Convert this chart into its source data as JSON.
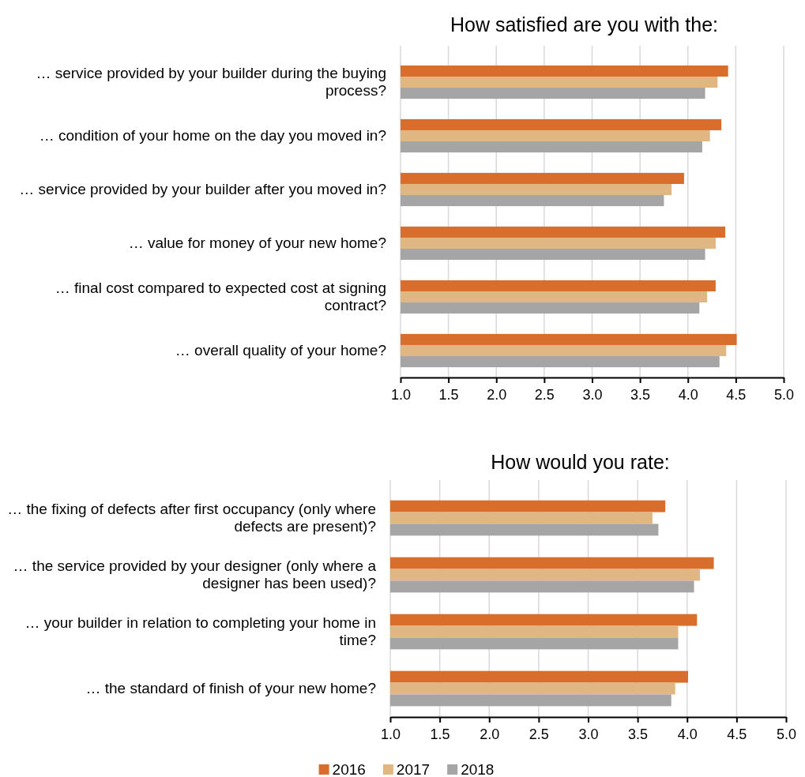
{
  "chart_data": [
    {
      "type": "bar",
      "orientation": "horizontal",
      "title": "How satisfied are you with the:",
      "categories": [
        "… service provided by your builder during the buying process?",
        "… condition of your home on the day you moved in?",
        "… service provided by your builder after you moved in?",
        "… value for money of your new home?",
        "… final cost compared to expected cost at signing contract?",
        "… overall quality of your home?"
      ],
      "series": [
        {
          "color": "#d96d2c",
          "values": [
            4.42,
            4.35,
            3.96,
            4.39,
            4.29,
            4.51
          ]
        },
        {
          "color": "#e0b683",
          "values": [
            4.31,
            4.23,
            3.83,
            4.29,
            4.2,
            4.4
          ]
        },
        {
          "color": "#a5a5a5",
          "values": [
            4.18,
            4.15,
            3.75,
            4.18,
            4.12,
            4.33
          ]
        }
      ],
      "xlim": [
        1,
        5
      ],
      "xticks": [
        {
          "value": 1,
          "label": "1.0"
        },
        {
          "value": 1.5,
          "label": "1.5"
        },
        {
          "value": 2,
          "label": "2.0"
        },
        {
          "value": 2.5,
          "label": "2.5"
        },
        {
          "value": 3,
          "label": "3.0"
        },
        {
          "value": 3.5,
          "label": "3.5"
        },
        {
          "value": 4,
          "label": "4.0"
        },
        {
          "value": 4.5,
          "label": "4.5"
        },
        {
          "value": 5,
          "label": "5.0"
        }
      ],
      "grid": "x",
      "legend": false
    },
    {
      "type": "bar",
      "orientation": "horizontal",
      "title": "How would you rate:",
      "categories": [
        "… the fixing of defects after first occupancy (only where defects are present)?",
        "… the service provided by your designer (only where a designer has been used)?",
        "… your builder in relation to completing your home in time?",
        "… the standard of finish of your new home?"
      ],
      "series": [
        {
          "name": "2016",
          "color": "#d96d2c",
          "values": [
            3.78,
            4.27,
            4.1,
            4.01
          ]
        },
        {
          "name": "2017",
          "color": "#e0b683",
          "values": [
            3.65,
            4.13,
            3.91,
            3.88
          ]
        },
        {
          "name": "2018",
          "color": "#a5a5a5",
          "values": [
            3.71,
            4.07,
            3.91,
            3.84
          ]
        }
      ],
      "xlim": [
        1,
        5
      ],
      "xticks": [
        {
          "value": 1,
          "label": "1.0"
        },
        {
          "value": 1.5,
          "label": "1.5"
        },
        {
          "value": 2,
          "label": "2.0"
        },
        {
          "value": 2.5,
          "label": "2.5"
        },
        {
          "value": 3,
          "label": "3.0"
        },
        {
          "value": 3.5,
          "label": "3.5"
        },
        {
          "value": 4,
          "label": "4.0"
        },
        {
          "value": 4.5,
          "label": "4.5"
        },
        {
          "value": 5,
          "label": "5.0"
        }
      ],
      "grid": "x",
      "legend": "bottom"
    }
  ]
}
